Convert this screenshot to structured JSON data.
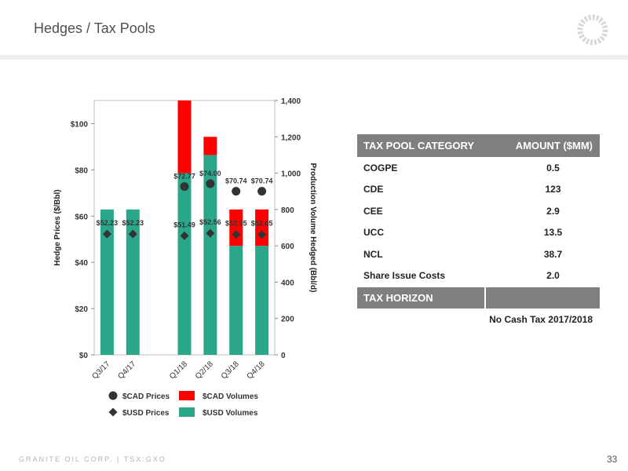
{
  "slide": {
    "title": "Hedges / Tax Pools",
    "footer": "GRANITE OIL CORP. | TSX:GXO",
    "page_number": "33"
  },
  "colors": {
    "usd_volume": "#2aa68a",
    "cad_volume": "#ff0000",
    "marker": "#333333"
  },
  "chart_data": {
    "type": "bar",
    "categories": [
      "Q3/17",
      "Q4/17",
      "",
      "Q1/18",
      "Q2/18",
      "Q3/18",
      "Q4/18"
    ],
    "ylabel": "Hedge Prices ($/Bbl)",
    "y2label": "Production Volume Hedged (Bbl/d)",
    "ylim": [
      0,
      110
    ],
    "y_ticks": [
      "$0",
      "$20",
      "$40",
      "$60",
      "$80",
      "$100"
    ],
    "y2lim": [
      0,
      1400
    ],
    "y2_ticks": [
      "0",
      "200",
      "400",
      "600",
      "800",
      "1,000",
      "1,200",
      "1,400"
    ],
    "series": [
      {
        "name": "$USD Volumes",
        "kind": "bar",
        "axis": "right",
        "values": [
          800,
          800,
          null,
          1000,
          1100,
          600,
          600
        ]
      },
      {
        "name": "$CAD Volumes",
        "kind": "bar",
        "axis": "right",
        "values": [
          0,
          0,
          null,
          400,
          100,
          200,
          200
        ]
      },
      {
        "name": "$CAD Prices",
        "kind": "marker",
        "marker": "circle",
        "axis": "left",
        "values": [
          null,
          null,
          null,
          72.77,
          74.0,
          70.74,
          70.74
        ]
      },
      {
        "name": "$USD Prices",
        "kind": "marker",
        "marker": "diamond",
        "axis": "left",
        "values": [
          52.23,
          52.23,
          null,
          51.49,
          52.56,
          52.05,
          52.05
        ]
      }
    ],
    "data_labels": {
      "cad_prices": [
        "",
        "",
        "",
        "$72.77",
        "$74.00",
        "$70.74",
        "$70.74"
      ],
      "usd_prices": [
        "$52.23",
        "$52.23",
        "",
        "$51.49",
        "$52.56",
        "$52.05",
        "$52.05"
      ]
    },
    "legend": {
      "placement": "bottom",
      "items": [
        "$CAD Prices",
        "$CAD Volumes",
        "$USD Prices",
        "$USD Volumes"
      ]
    },
    "grid": false
  },
  "tax_table": {
    "header_category": "TAX POOL CATEGORY",
    "header_amount": "AMOUNT ($MM)",
    "rows": [
      {
        "category": "COGPE",
        "amount": "0.5"
      },
      {
        "category": "CDE",
        "amount": "123"
      },
      {
        "category": "CEE",
        "amount": "2.9"
      },
      {
        "category": "UCC",
        "amount": "13.5"
      },
      {
        "category": "NCL",
        "amount": "38.7"
      },
      {
        "category": "Share Issue Costs",
        "amount": "2.0"
      }
    ],
    "horizon_header": "TAX HORIZON",
    "horizon_value": "No Cash Tax 2017/2018"
  }
}
